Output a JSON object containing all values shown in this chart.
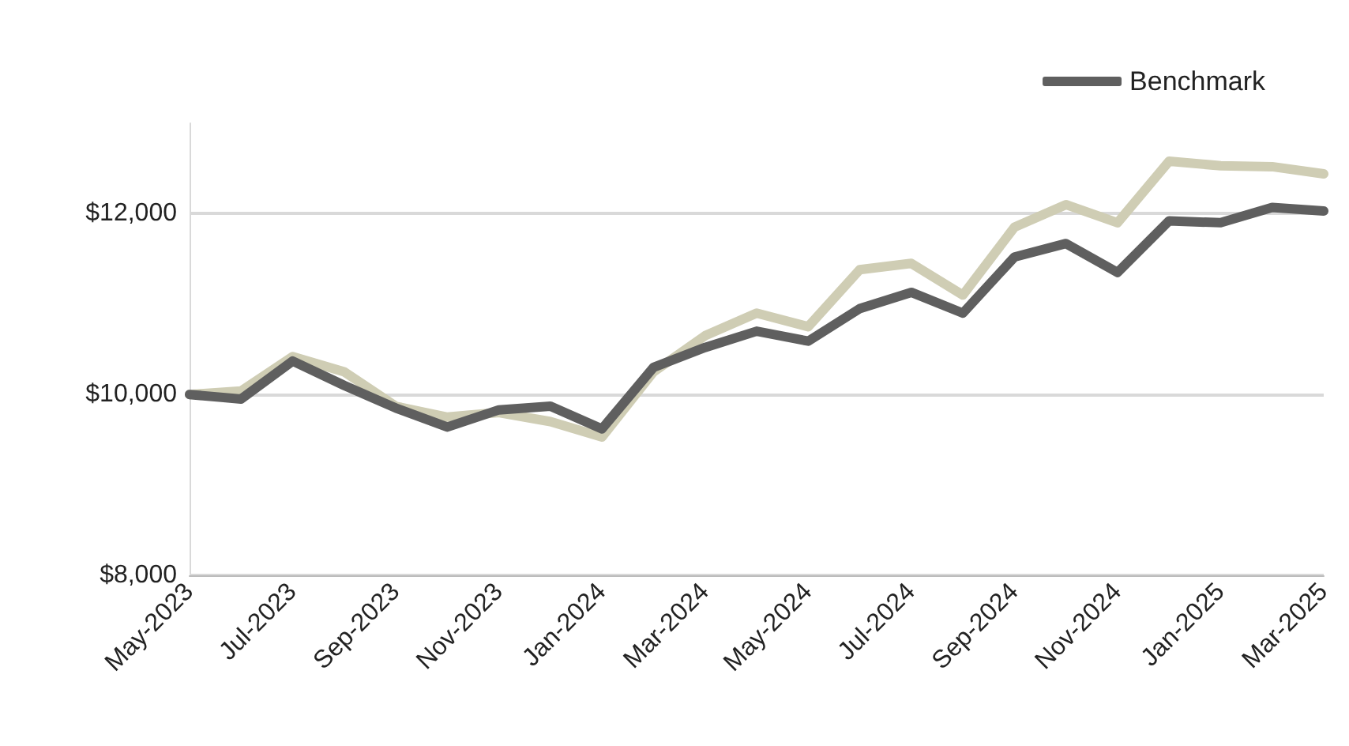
{
  "chart_data": {
    "type": "line",
    "categories": [
      "May-2023",
      null,
      "Jul-2023",
      null,
      "Sep-2023",
      null,
      "Nov-2023",
      null,
      "Jan-2024",
      null,
      "Mar-2024",
      null,
      "May-2024",
      null,
      "Jul-2024",
      null,
      "Sep-2024",
      null,
      "Nov-2024",
      null,
      "Jan-2025",
      null,
      "Mar-2025"
    ],
    "series": [
      {
        "color": "#cfcdb4",
        "values": [
          10000,
          10040,
          10420,
          10250,
          9870,
          9750,
          9800,
          9700,
          9530,
          10250,
          10650,
          10900,
          10750,
          11380,
          11450,
          11100,
          11850,
          12100,
          11900,
          12580,
          12530,
          12520,
          12440
        ]
      },
      {
        "name": "Benchmark",
        "color": "#5f5f5f",
        "values": [
          10000,
          9950,
          10370,
          10100,
          9850,
          9640,
          9830,
          9870,
          9620,
          10300,
          10520,
          10700,
          10590,
          10950,
          11130,
          10900,
          11520,
          11670,
          11350,
          11920,
          11900,
          12070,
          12030
        ]
      }
    ],
    "ylim": [
      8000,
      13000
    ],
    "yticks": [
      {
        "value": 8000,
        "label": "$8,000"
      },
      {
        "value": 10000,
        "label": "$10,000"
      },
      {
        "value": 12000,
        "label": "$12,000"
      }
    ],
    "grid": "y",
    "legend": "top right",
    "marker": "none",
    "line_style": "solid"
  }
}
